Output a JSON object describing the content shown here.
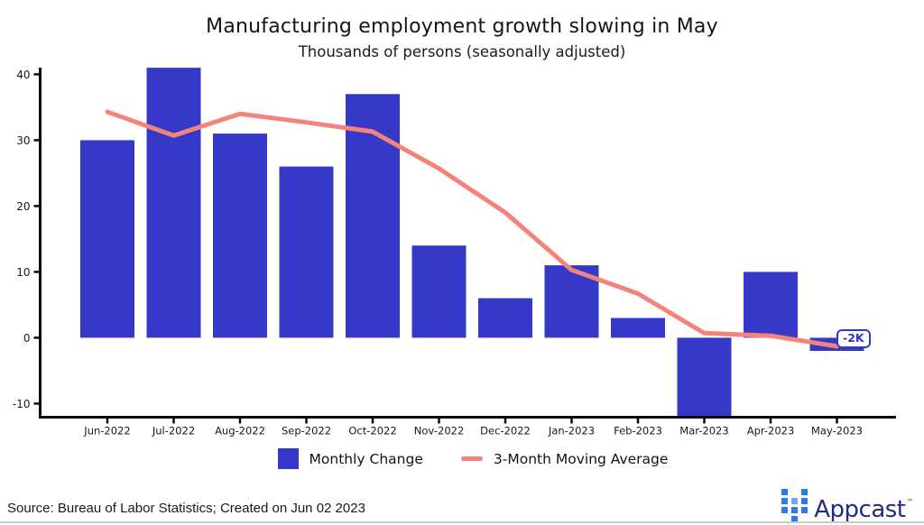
{
  "header": {
    "title": "Manufacturing employment growth slowing in May",
    "subtitle": "Thousands of persons (seasonally adjusted)"
  },
  "chart_data": {
    "type": "combo",
    "categories": [
      "Jun-2022",
      "Jul-2022",
      "Aug-2022",
      "Sep-2022",
      "Oct-2022",
      "Nov-2022",
      "Dec-2022",
      "Jan-2023",
      "Feb-2023",
      "Mar-2023",
      "Apr-2023",
      "May-2023"
    ],
    "series": [
      {
        "name": "Monthly Change",
        "type": "bar",
        "color": "#3639C8",
        "values": [
          30,
          41,
          31,
          26,
          37,
          14,
          6,
          11,
          3,
          -12,
          10,
          -2
        ]
      },
      {
        "name": "3-Month Moving Average",
        "type": "line",
        "color": "#F5837B",
        "values": [
          34.3,
          30.7,
          34.0,
          32.7,
          31.3,
          25.7,
          19.0,
          10.3,
          6.7,
          0.7,
          0.3,
          -1.3
        ]
      }
    ],
    "title": "Manufacturing employment growth slowing in May",
    "subtitle": "Thousands of persons (seasonally adjusted)",
    "xlabel": "",
    "ylabel": "",
    "ylim": [
      -12,
      41
    ],
    "yticks": [
      40,
      30,
      20,
      10,
      0,
      -10
    ],
    "grid": false,
    "legend_position": "bottom",
    "annotation": {
      "text": "-2K",
      "category": "May-2023",
      "value": -2
    }
  },
  "legend": {
    "items": [
      {
        "label": "Monthly Change",
        "swatch": "square",
        "color": "#3639C8"
      },
      {
        "label": "3-Month Moving Average",
        "swatch": "line",
        "color": "#F5837B"
      }
    ]
  },
  "annotation": {
    "label": "-2K"
  },
  "footer": {
    "source": "Source: Bureau of Labor Statistics; Created on Jun 02 2023",
    "brand": "Appcast",
    "trademark": "™"
  },
  "colors": {
    "bar": "#3639C8",
    "line": "#F5837B",
    "axis": "#0a0a0a",
    "tick_text": "#1a1a1a",
    "annotation": "#3336C9",
    "brand_word": "#232A80",
    "brand_dot": "#2D7BE5",
    "brand_dot_light": "#6FA9EF",
    "footer_rule": "#cccccc"
  }
}
